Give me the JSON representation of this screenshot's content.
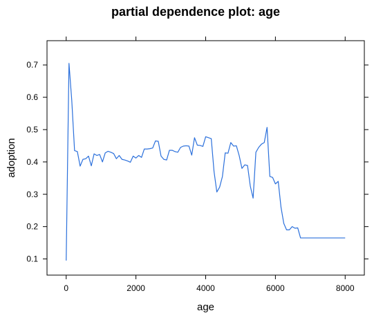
{
  "chart_data": {
    "type": "line",
    "title": "partial dependence plot: age",
    "xlabel": "age",
    "ylabel": "adoption",
    "xlim": [
      -550,
      8550
    ],
    "ylim": [
      0.05,
      0.775
    ],
    "xticks": [
      0,
      2000,
      4000,
      6000,
      8000
    ],
    "yticks": [
      0.1,
      0.2,
      0.3,
      0.4,
      0.5,
      0.6,
      0.7
    ],
    "grid": false,
    "series": [
      {
        "color": "#2a6fdb",
        "x": [
          0,
          80,
          160,
          240,
          320,
          400,
          480,
          560,
          640,
          720,
          800,
          880,
          960,
          1040,
          1120,
          1200,
          1280,
          1360,
          1440,
          1520,
          1600,
          1680,
          1760,
          1840,
          1920,
          2000,
          2080,
          2160,
          2240,
          2320,
          2400,
          2480,
          2560,
          2640,
          2720,
          2800,
          2880,
          2960,
          3040,
          3120,
          3200,
          3280,
          3360,
          3440,
          3520,
          3600,
          3680,
          3760,
          3840,
          3920,
          4000,
          4080,
          4160,
          4240,
          4320,
          4400,
          4480,
          4560,
          4640,
          4720,
          4800,
          4880,
          4960,
          5040,
          5120,
          5200,
          5280,
          5360,
          5440,
          5520,
          5600,
          5680,
          5760,
          5840,
          5920,
          6000,
          6080,
          6160,
          6240,
          6320,
          6400,
          6480,
          6560,
          6640,
          6720,
          6800,
          8000
        ],
        "y": [
          0.095,
          0.705,
          0.59,
          0.435,
          0.432,
          0.387,
          0.408,
          0.41,
          0.418,
          0.388,
          0.425,
          0.42,
          0.423,
          0.4,
          0.428,
          0.433,
          0.43,
          0.426,
          0.41,
          0.42,
          0.408,
          0.406,
          0.403,
          0.399,
          0.418,
          0.412,
          0.42,
          0.414,
          0.44,
          0.44,
          0.441,
          0.443,
          0.465,
          0.464,
          0.418,
          0.408,
          0.406,
          0.436,
          0.436,
          0.432,
          0.43,
          0.445,
          0.449,
          0.45,
          0.449,
          0.421,
          0.475,
          0.452,
          0.451,
          0.448,
          0.478,
          0.475,
          0.472,
          0.37,
          0.307,
          0.322,
          0.355,
          0.428,
          0.427,
          0.46,
          0.449,
          0.45,
          0.42,
          0.38,
          0.391,
          0.389,
          0.325,
          0.288,
          0.43,
          0.445,
          0.455,
          0.46,
          0.507,
          0.355,
          0.352,
          0.332,
          0.34,
          0.26,
          0.21,
          0.19,
          0.19,
          0.2,
          0.195,
          0.196,
          0.165,
          0.165,
          0.165
        ]
      }
    ]
  }
}
